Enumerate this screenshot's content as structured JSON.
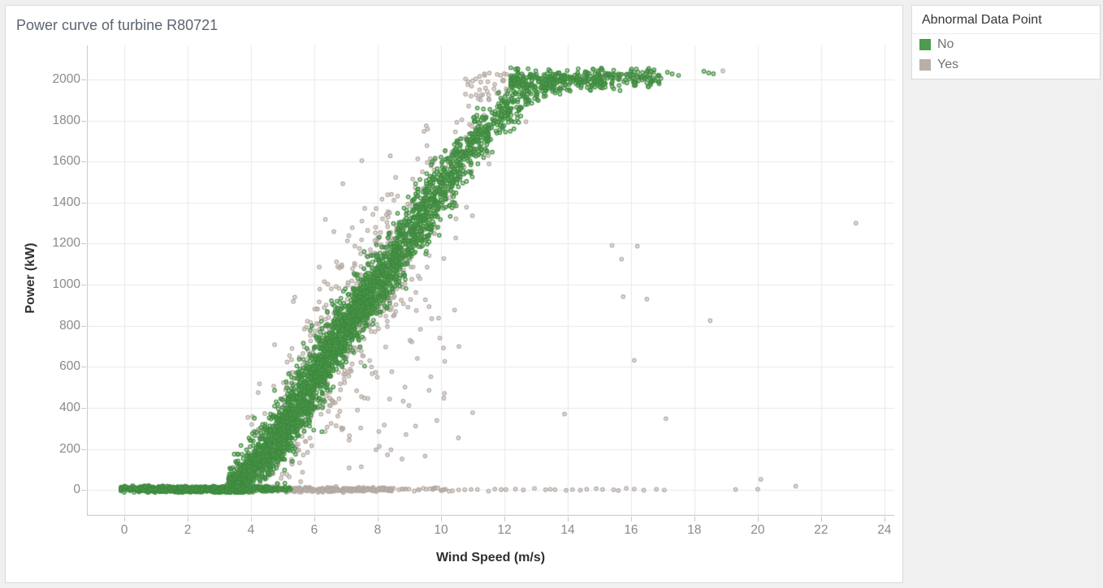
{
  "window": {
    "background": "#f0f0f0"
  },
  "legend_panel": {
    "title": "Abnormal Data Point",
    "items": [
      {
        "label": "No",
        "color": "#4e9a4e"
      },
      {
        "label": "Yes",
        "color": "#b8afa9"
      }
    ]
  },
  "chart_data": {
    "type": "scatter",
    "title": "Power curve of turbine R80721",
    "xlabel": "Wind Speed (m/s)",
    "ylabel": "Power (kW)",
    "xlim": [
      -1.18,
      24.31
    ],
    "ylim": [
      -126,
      2166
    ],
    "x_ticks": [
      0,
      2,
      4,
      6,
      8,
      10,
      12,
      14,
      16,
      18,
      20,
      22,
      24
    ],
    "y_ticks": [
      0,
      200,
      400,
      600,
      800,
      1000,
      1200,
      1400,
      1600,
      1800,
      2000
    ],
    "grid": true,
    "grid_color": "#e9e9e9",
    "ruler_color": "#c6c6c6",
    "legend_position": "top-right",
    "seed": 42,
    "point_radius": 2.2,
    "point_stroke_width": 1.2,
    "series_styles": {
      "No": {
        "stroke": "#3e8a3e",
        "fill": "rgba(88,160,88,0.40)",
        "legend_color": "#4e9a4e"
      },
      "Yes": {
        "stroke": "#b2a7a0",
        "fill": "rgba(192,183,177,0.45)",
        "legend_color": "#b8afa9"
      }
    },
    "power_curve_control_points": [
      [
        3.0,
        0
      ],
      [
        3.5,
        35
      ],
      [
        4,
        100
      ],
      [
        4.5,
        185
      ],
      [
        5,
        290
      ],
      [
        5.5,
        410
      ],
      [
        6,
        545
      ],
      [
        6.5,
        672
      ],
      [
        7,
        800
      ],
      [
        7.5,
        900
      ],
      [
        8,
        1000
      ],
      [
        8.5,
        1120
      ],
      [
        9,
        1240
      ],
      [
        9.5,
        1360
      ],
      [
        10,
        1470
      ],
      [
        10.5,
        1580
      ],
      [
        11,
        1680
      ],
      [
        11.5,
        1770
      ],
      [
        12,
        1850
      ],
      [
        12.5,
        1910
      ],
      [
        13,
        1955
      ],
      [
        13.5,
        1985
      ],
      [
        14,
        2005
      ],
      [
        15,
        2018
      ],
      [
        16,
        2022
      ],
      [
        17.6,
        2025
      ]
    ],
    "point_generators": [
      {
        "series": "Yes",
        "type": "curve",
        "count": 640,
        "v_dist": {
          "type": "normal",
          "mean": 7.2,
          "sigma": 1.9,
          "min": 3.9,
          "max": 12.9
        },
        "v_sigma": 0.8,
        "p_sigma": 55
      },
      {
        "series": "Yes",
        "type": "zeroline",
        "count": 330,
        "v_min": 4.4,
        "v_max": 8.45,
        "p_mean": 2,
        "p_sigma": 5
      },
      {
        "series": "Yes",
        "type": "zeroline",
        "count": 26,
        "v_min": 8.5,
        "v_max": 10.6,
        "p_mean": 2,
        "p_sigma": 4
      },
      {
        "series": "Yes",
        "type": "zerolist",
        "p_mean": 2,
        "v_values": [
          10.75,
          10.95,
          11.15,
          11.5,
          11.7,
          11.9,
          12.05,
          12.35,
          12.6,
          12.95,
          13.3,
          13.45,
          13.6,
          13.95,
          14.15,
          14.4,
          14.6,
          14.9,
          15.1,
          15.45,
          15.6,
          15.85,
          16.1,
          16.4,
          16.8,
          17.05
        ]
      },
      {
        "series": "Yes",
        "type": "box",
        "count": 36,
        "v_min": 10.7,
        "v_max": 12.1,
        "p_min": 1900,
        "p_max": 2040
      },
      {
        "series": "Yes",
        "type": "below_curve",
        "count": 46,
        "v_min": 6.3,
        "v_max": 10.6,
        "frac_min": 0.12,
        "frac_max": 0.68
      },
      {
        "series": "Yes",
        "type": "points",
        "points": [
          [
            7.5,
            1605
          ],
          [
            8.4,
            1628
          ],
          [
            6.9,
            1492
          ],
          [
            6.35,
            1318
          ],
          [
            23.1,
            1300
          ],
          [
            15.4,
            1192
          ],
          [
            16.2,
            1188
          ],
          [
            15.7,
            1125
          ],
          [
            15.75,
            942
          ],
          [
            16.5,
            930
          ],
          [
            18.5,
            825
          ],
          [
            16.1,
            632
          ],
          [
            17.1,
            347
          ],
          [
            13.9,
            370
          ],
          [
            11.0,
            377
          ],
          [
            18.9,
            2042
          ],
          [
            20.1,
            52
          ],
          [
            21.2,
            18
          ],
          [
            19.3,
            2
          ],
          [
            20.0,
            3
          ]
        ]
      },
      {
        "series": "No",
        "type": "curve",
        "count": 4200,
        "v_dist": {
          "type": "weibull",
          "k": 2.05,
          "lambda": 7.3,
          "min": 0.05,
          "max": 17.0
        },
        "v_sigma": 0.33,
        "p_sigma": 26
      },
      {
        "series": "No",
        "type": "plateau",
        "count": 250,
        "v_min": 12.2,
        "v_max": 16.9,
        "skew": 1.5,
        "p_mean": 1995,
        "p_sigma": 22
      },
      {
        "series": "No",
        "type": "zeroline",
        "count": 430,
        "v_min": -0.12,
        "v_max": 5.25,
        "p_mean": 5,
        "p_sigma": 7
      },
      {
        "series": "No",
        "type": "points",
        "points": [
          [
            17.15,
            2035
          ],
          [
            17.3,
            2027
          ],
          [
            17.5,
            2020
          ],
          [
            18.3,
            2040
          ],
          [
            18.45,
            2032
          ],
          [
            18.6,
            2028
          ],
          [
            12.75,
            2052
          ],
          [
            13.4,
            2048
          ]
        ]
      }
    ]
  }
}
